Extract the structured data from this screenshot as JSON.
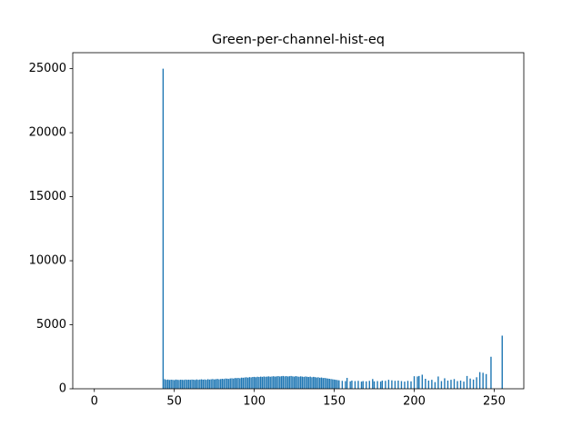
{
  "chart_data": {
    "type": "bar",
    "title": "Green-per-channel-hist-eq",
    "color": "#1f77b4",
    "bar_width": 0.8,
    "x": [
      43,
      44,
      45,
      46,
      47,
      48,
      49,
      50,
      51,
      52,
      53,
      54,
      55,
      56,
      57,
      58,
      59,
      60,
      61,
      62,
      63,
      64,
      65,
      66,
      67,
      68,
      69,
      70,
      71,
      72,
      73,
      74,
      75,
      76,
      77,
      78,
      79,
      80,
      81,
      82,
      83,
      84,
      85,
      86,
      87,
      88,
      89,
      90,
      91,
      92,
      93,
      94,
      95,
      96,
      97,
      98,
      99,
      100,
      101,
      102,
      103,
      104,
      105,
      106,
      107,
      108,
      109,
      110,
      111,
      112,
      113,
      114,
      115,
      116,
      117,
      118,
      119,
      120,
      121,
      122,
      123,
      124,
      125,
      126,
      127,
      128,
      129,
      130,
      131,
      132,
      133,
      134,
      135,
      136,
      137,
      138,
      139,
      140,
      141,
      142,
      143,
      144,
      145,
      146,
      147,
      148,
      149,
      150,
      151,
      152,
      153,
      155,
      157,
      158,
      160,
      161,
      163,
      165,
      167,
      168,
      170,
      172,
      174,
      175,
      177,
      179,
      180,
      182,
      184,
      186,
      188,
      190,
      192,
      194,
      196,
      198,
      200,
      202,
      203,
      205,
      207,
      209,
      211,
      213,
      215,
      217,
      219,
      221,
      223,
      225,
      227,
      229,
      231,
      233,
      235,
      237,
      239,
      241,
      243,
      245,
      248,
      255
    ],
    "values": [
      25000,
      750,
      700,
      720,
      690,
      710,
      700,
      680,
      720,
      700,
      690,
      710,
      700,
      690,
      720,
      700,
      710,
      700,
      720,
      710,
      690,
      730,
      700,
      720,
      740,
      710,
      730,
      700,
      750,
      720,
      740,
      760,
      730,
      750,
      770,
      740,
      760,
      780,
      760,
      800,
      790,
      770,
      810,
      820,
      800,
      840,
      830,
      850,
      820,
      870,
      860,
      880,
      900,
      870,
      910,
      890,
      920,
      930,
      900,
      940,
      920,
      950,
      930,
      960,
      940,
      950,
      970,
      940,
      960,
      980,
      950,
      970,
      990,
      960,
      980,
      1000,
      970,
      990,
      960,
      980,
      1000,
      970,
      950,
      990,
      960,
      940,
      970,
      950,
      930,
      960,
      940,
      920,
      950,
      900,
      930,
      910,
      880,
      900,
      860,
      880,
      840,
      850,
      820,
      800,
      780,
      760,
      740,
      720,
      700,
      680,
      660,
      620,
      600,
      850,
      580,
      640,
      600,
      620,
      560,
      600,
      580,
      620,
      760,
      580,
      600,
      560,
      640,
      620,
      700,
      660,
      620,
      640,
      600,
      560,
      620,
      580,
      980,
      960,
      1000,
      1100,
      780,
      640,
      700,
      520,
      960,
      600,
      820,
      640,
      700,
      760,
      600,
      640,
      560,
      1000,
      800,
      720,
      900,
      1300,
      1250,
      1150,
      2500,
      4150
    ],
    "xlim": [
      -13.5,
      268.5
    ],
    "xticks": [
      0,
      50,
      100,
      150,
      200,
      250
    ],
    "ylim": [
      0,
      26250
    ],
    "yticks": [
      0,
      5000,
      10000,
      15000,
      20000,
      25000
    ]
  }
}
